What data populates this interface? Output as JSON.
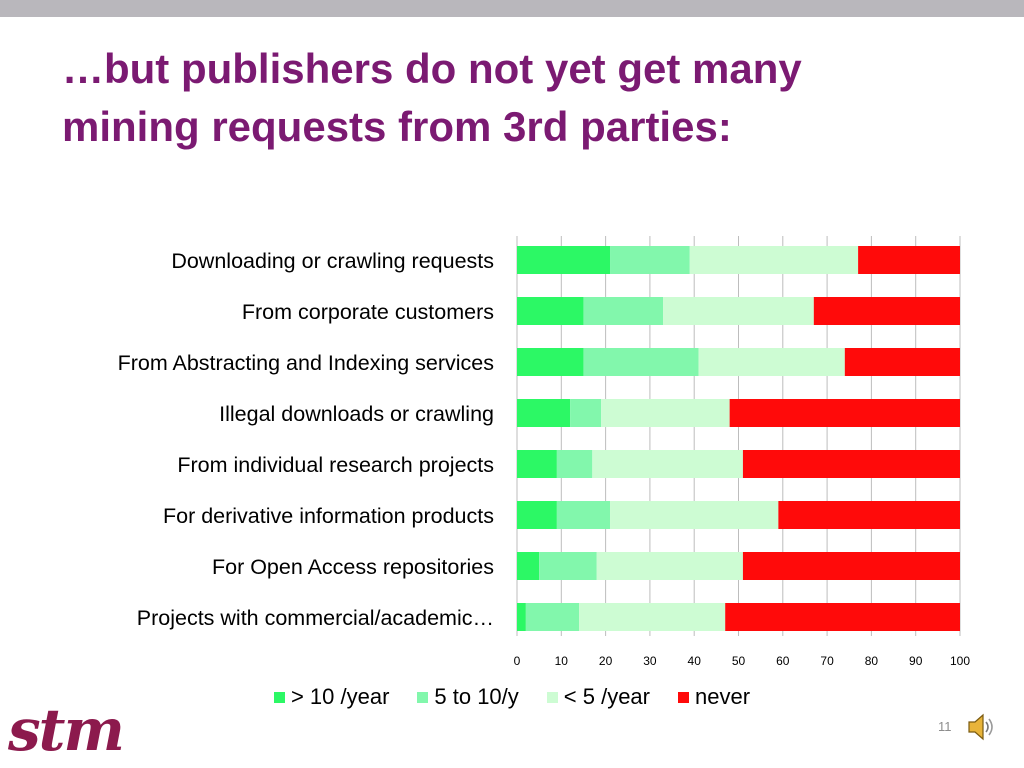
{
  "slide": {
    "title_line1": "…but publishers do not yet get many",
    "title_line2": "mining requests from 3rd parties:",
    "page_number": "11",
    "logo_text": "stm",
    "speaker_icon": "speaker-icon"
  },
  "chart_data": {
    "type": "bar",
    "orientation": "horizontal",
    "stacked": true,
    "title": "",
    "xlabel": "",
    "ylabel": "",
    "xlim": [
      0,
      100
    ],
    "x_ticks": [
      0,
      10,
      20,
      30,
      40,
      50,
      60,
      70,
      80,
      90,
      100
    ],
    "grid": true,
    "legend_position": "bottom",
    "categories": [
      "Downloading or crawling requests",
      "From corporate customers",
      "From Abstracting and Indexing services",
      "Illegal downloads or crawling",
      "From individual research projects",
      "For derivative information products",
      "For Open Access repositories",
      "Projects with commercial/academic…"
    ],
    "series": [
      {
        "name": "> 10 /year",
        "color": "#2cf865",
        "values": [
          21,
          15,
          15,
          12,
          9,
          9,
          5,
          2
        ]
      },
      {
        "name": "5 to 10/y",
        "color": "#82f7ac",
        "values": [
          18,
          18,
          26,
          7,
          8,
          12,
          13,
          12
        ]
      },
      {
        "name": "< 5 /year",
        "color": "#cdfcd3",
        "values": [
          38,
          34,
          33,
          29,
          34,
          38,
          33,
          33
        ]
      },
      {
        "name": "never",
        "color": "#ff0a0a",
        "values": [
          23,
          33,
          26,
          52,
          49,
          41,
          49,
          53
        ]
      }
    ]
  }
}
